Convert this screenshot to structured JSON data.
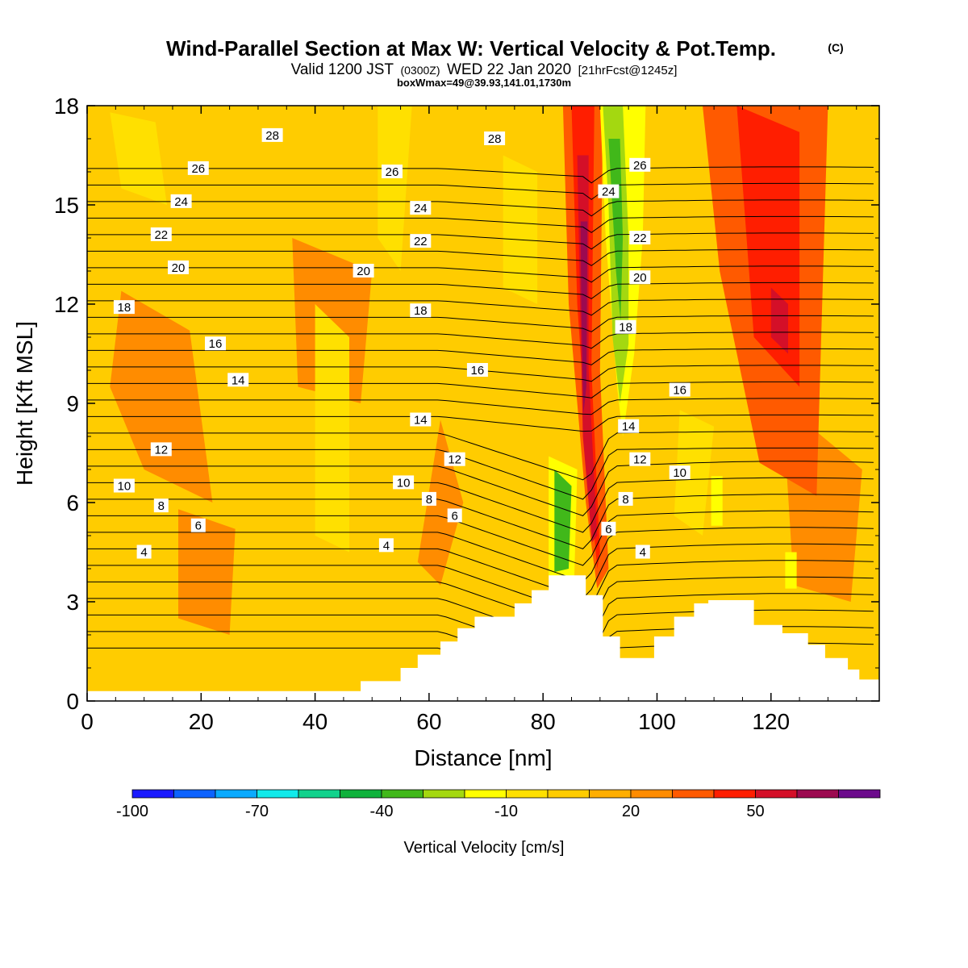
{
  "header": {
    "title": "Wind-Parallel Section at Max W: Vertical Velocity & Pot.Temp.",
    "title_mark": "(C)",
    "valid_prefix": "Valid 1200 JST",
    "valid_utc": "(0300Z)",
    "valid_date": "WED 22 Jan 2020",
    "forecast": "[21hrFcst@1245z]",
    "box_info": "boxWmax=49@39.93,141.01,1730m"
  },
  "chart_data": {
    "type": "heatmap",
    "xlabel": "Distance [nm]",
    "ylabel": "Height [Kft MSL]",
    "xlim": [
      0,
      139
    ],
    "ylim": [
      0,
      18
    ],
    "x_ticks": [
      0,
      20,
      40,
      60,
      80,
      100,
      120
    ],
    "y_ticks": [
      0,
      3,
      6,
      9,
      12,
      15,
      18
    ],
    "colorbar": {
      "label": "Vertical Velocity [cm/s]",
      "tick_labels": [
        "-100",
        "-70",
        "-40",
        "-10",
        "20",
        "50"
      ],
      "tick_values": [
        -100,
        -70,
        -40,
        -10,
        20,
        50
      ],
      "levels": [
        -100,
        -90,
        -80,
        -70,
        -60,
        -50,
        -40,
        -30,
        -20,
        -10,
        0,
        10,
        20,
        30,
        40,
        50,
        60,
        70
      ],
      "colors": [
        "#1a1aff",
        "#0d63ff",
        "#0aaaff",
        "#11eaea",
        "#11d28c",
        "#0fb23c",
        "#41b81a",
        "#a4d810",
        "#ffff00",
        "#ffe000",
        "#ffcc00",
        "#ffae00",
        "#ff8c00",
        "#ff5a00",
        "#ff1e00",
        "#d40f28",
        "#9c0a50",
        "#6c0b8c"
      ]
    },
    "background_level": "#ffcc00",
    "terrain": [
      [
        0,
        0.3
      ],
      [
        48,
        0.3
      ],
      [
        48,
        0.6
      ],
      [
        55,
        0.6
      ],
      [
        55,
        1.0
      ],
      [
        58,
        1.0
      ],
      [
        58,
        1.4
      ],
      [
        62,
        1.4
      ],
      [
        62,
        1.8
      ],
      [
        65,
        1.8
      ],
      [
        65,
        2.2
      ],
      [
        68,
        2.2
      ],
      [
        68,
        2.55
      ],
      [
        75,
        2.55
      ],
      [
        75,
        2.95
      ],
      [
        78,
        2.95
      ],
      [
        78,
        3.35
      ],
      [
        81,
        3.35
      ],
      [
        81,
        3.8
      ],
      [
        87.5,
        3.8
      ],
      [
        87.5,
        3.2
      ],
      [
        90.5,
        3.2
      ],
      [
        90.5,
        1.95
      ],
      [
        93.5,
        1.95
      ],
      [
        93.5,
        1.3
      ],
      [
        99.5,
        1.3
      ],
      [
        99.5,
        1.95
      ],
      [
        103,
        1.95
      ],
      [
        103,
        2.55
      ],
      [
        106.5,
        2.55
      ],
      [
        106.5,
        2.95
      ],
      [
        109,
        2.95
      ],
      [
        109,
        3.05
      ],
      [
        117,
        3.05
      ],
      [
        117,
        2.3
      ],
      [
        122,
        2.3
      ],
      [
        122,
        2.05
      ],
      [
        126.5,
        2.05
      ],
      [
        126.5,
        1.7
      ],
      [
        129.5,
        1.7
      ],
      [
        129.5,
        1.3
      ],
      [
        133.5,
        1.3
      ],
      [
        133.5,
        0.95
      ],
      [
        135.5,
        0.95
      ],
      [
        135.5,
        0.65
      ],
      [
        139,
        0.65
      ]
    ],
    "velocity_features": [
      {
        "level": 20,
        "points": [
          [
            6,
            12.4
          ],
          [
            18,
            11.2
          ],
          [
            22,
            6.0
          ],
          [
            10,
            7.0
          ],
          [
            4,
            9.5
          ]
        ]
      },
      {
        "level": 20,
        "points": [
          [
            36,
            14.0
          ],
          [
            50,
            13.0
          ],
          [
            48,
            9.0
          ],
          [
            37,
            9.5
          ]
        ]
      },
      {
        "level": 20,
        "points": [
          [
            62,
            8.5
          ],
          [
            66,
            6.0
          ],
          [
            62,
            3.5
          ],
          [
            58,
            4.2
          ]
        ]
      },
      {
        "level": 20,
        "points": [
          [
            16,
            5.8
          ],
          [
            26,
            5.2
          ],
          [
            25,
            2.0
          ],
          [
            16,
            2.5
          ]
        ]
      },
      {
        "level": 20,
        "points": [
          [
            122,
            9.0
          ],
          [
            136,
            7.0
          ],
          [
            134,
            3.0
          ],
          [
            124,
            3.5
          ]
        ]
      },
      {
        "level": -10,
        "points": [
          [
            4,
            17.8
          ],
          [
            12,
            17.5
          ],
          [
            14,
            15.0
          ],
          [
            6,
            15.5
          ]
        ]
      },
      {
        "level": -10,
        "points": [
          [
            40,
            12.0
          ],
          [
            46,
            11.0
          ],
          [
            46,
            4.5
          ],
          [
            40,
            5.0
          ]
        ]
      },
      {
        "level": -10,
        "points": [
          [
            51,
            18
          ],
          [
            57,
            18
          ],
          [
            55,
            13.0
          ],
          [
            51,
            14.0
          ]
        ]
      },
      {
        "level": -10,
        "points": [
          [
            73,
            16.5
          ],
          [
            79,
            16.0
          ],
          [
            79,
            12.0
          ],
          [
            73,
            12.5
          ]
        ]
      },
      {
        "level": -10,
        "points": [
          [
            104,
            8.8
          ],
          [
            110,
            8.3
          ],
          [
            108,
            5.0
          ],
          [
            103,
            5.6
          ]
        ]
      },
      {
        "level": 30,
        "points": [
          [
            108,
            18
          ],
          [
            130,
            18
          ],
          [
            128,
            6.2
          ],
          [
            118,
            7.2
          ],
          [
            111,
            13.0
          ]
        ]
      },
      {
        "level": 40,
        "points": [
          [
            114,
            18
          ],
          [
            125,
            17.2
          ],
          [
            125,
            9.5
          ],
          [
            117,
            11.0
          ]
        ]
      },
      {
        "level": 50,
        "points": [
          [
            120,
            12.5
          ],
          [
            123,
            12.0
          ],
          [
            123,
            10.5
          ],
          [
            120,
            11.0
          ]
        ]
      },
      {
        "level": 30,
        "points": [
          [
            83.5,
            18
          ],
          [
            90.5,
            18
          ],
          [
            90,
            10.0
          ],
          [
            91.5,
            4.0
          ],
          [
            89.5,
            3.4
          ],
          [
            87.5,
            6.0
          ],
          [
            84.5,
            12.0
          ]
        ]
      },
      {
        "level": 40,
        "points": [
          [
            85,
            18
          ],
          [
            89,
            18
          ],
          [
            88.5,
            10.0
          ],
          [
            90,
            4.5
          ],
          [
            89.5,
            4.0
          ],
          [
            88,
            7.0
          ],
          [
            86,
            12.0
          ]
        ]
      },
      {
        "level": 50,
        "points": [
          [
            86,
            16.5
          ],
          [
            88,
            16.5
          ],
          [
            88,
            10.0
          ],
          [
            89.5,
            5.0
          ],
          [
            88.6,
            4.8
          ],
          [
            87,
            8.0
          ],
          [
            86.5,
            12.0
          ]
        ]
      },
      {
        "level": 60,
        "points": [
          [
            86.6,
            14.5
          ],
          [
            87.8,
            14.5
          ],
          [
            87.6,
            9.5
          ],
          [
            87.1,
            8.7
          ],
          [
            86.7,
            12.0
          ]
        ]
      },
      {
        "level": -20,
        "points": [
          [
            90,
            18
          ],
          [
            98,
            18
          ],
          [
            97.5,
            14.0
          ],
          [
            96,
            10.5
          ],
          [
            94,
            8.0
          ],
          [
            93,
            9.5
          ],
          [
            91,
            14.0
          ]
        ]
      },
      {
        "level": -30,
        "points": [
          [
            90.5,
            18
          ],
          [
            94,
            18
          ],
          [
            95,
            14.0
          ],
          [
            95,
            10.8
          ],
          [
            93.5,
            9.0
          ],
          [
            92.2,
            11.0
          ],
          [
            91.5,
            15.0
          ]
        ]
      },
      {
        "level": -40,
        "points": [
          [
            91.5,
            17.0
          ],
          [
            93.5,
            17.0
          ],
          [
            94,
            14.0
          ],
          [
            93.6,
            11.5
          ],
          [
            92.8,
            13.0
          ]
        ]
      },
      {
        "level": -20,
        "points": [
          [
            81,
            7.4
          ],
          [
            86,
            7.0
          ],
          [
            85.5,
            3.8
          ],
          [
            81,
            3.6
          ]
        ]
      },
      {
        "level": -40,
        "points": [
          [
            82,
            7.0
          ],
          [
            85,
            6.5
          ],
          [
            84.5,
            4.0
          ],
          [
            82,
            3.9
          ]
        ]
      },
      {
        "level": -20,
        "points": [
          [
            109.5,
            6.8
          ],
          [
            111.5,
            6.8
          ],
          [
            111.5,
            5.3
          ],
          [
            109.5,
            5.3
          ]
        ]
      },
      {
        "level": -20,
        "points": [
          [
            122.5,
            4.5
          ],
          [
            124.5,
            4.5
          ],
          [
            124.5,
            3.4
          ],
          [
            122.5,
            3.4
          ]
        ]
      }
    ],
    "theta_contours": {
      "interval": 1,
      "start": 2,
      "end": 31,
      "label_interval": 2
    },
    "contour_labels": [
      {
        "text": "28",
        "x": 32.5,
        "y": 17.1
      },
      {
        "text": "26",
        "x": 19.5,
        "y": 16.1
      },
      {
        "text": "24",
        "x": 16.5,
        "y": 15.1
      },
      {
        "text": "22",
        "x": 13,
        "y": 14.1
      },
      {
        "text": "20",
        "x": 16,
        "y": 13.1
      },
      {
        "text": "18",
        "x": 6.5,
        "y": 11.9
      },
      {
        "text": "16",
        "x": 22.5,
        "y": 10.8
      },
      {
        "text": "14",
        "x": 26.5,
        "y": 9.7
      },
      {
        "text": "12",
        "x": 13,
        "y": 7.6
      },
      {
        "text": "10",
        "x": 6.5,
        "y": 6.5
      },
      {
        "text": "8",
        "x": 13,
        "y": 5.9
      },
      {
        "text": "6",
        "x": 19.5,
        "y": 5.3
      },
      {
        "text": "4",
        "x": 10,
        "y": 4.5
      },
      {
        "text": "20",
        "x": 48.5,
        "y": 13.0
      },
      {
        "text": "26",
        "x": 53.5,
        "y": 16.0
      },
      {
        "text": "24",
        "x": 58.5,
        "y": 14.9
      },
      {
        "text": "22",
        "x": 58.5,
        "y": 13.9
      },
      {
        "text": "18",
        "x": 58.5,
        "y": 11.8
      },
      {
        "text": "14",
        "x": 58.5,
        "y": 8.5
      },
      {
        "text": "12",
        "x": 64.5,
        "y": 7.3
      },
      {
        "text": "10",
        "x": 55.5,
        "y": 6.6
      },
      {
        "text": "8",
        "x": 60,
        "y": 6.1
      },
      {
        "text": "6",
        "x": 64.5,
        "y": 5.6
      },
      {
        "text": "4",
        "x": 52.5,
        "y": 4.7
      },
      {
        "text": "16",
        "x": 68.5,
        "y": 10.0
      },
      {
        "text": "28",
        "x": 71.5,
        "y": 17.0
      },
      {
        "text": "24",
        "x": 91.5,
        "y": 15.4
      },
      {
        "text": "26",
        "x": 97,
        "y": 16.2
      },
      {
        "text": "22",
        "x": 97,
        "y": 14.0
      },
      {
        "text": "20",
        "x": 97,
        "y": 12.8
      },
      {
        "text": "18",
        "x": 94.5,
        "y": 11.3
      },
      {
        "text": "16",
        "x": 104,
        "y": 9.4
      },
      {
        "text": "14",
        "x": 95,
        "y": 8.3
      },
      {
        "text": "12",
        "x": 97,
        "y": 7.3
      },
      {
        "text": "10",
        "x": 104,
        "y": 6.9
      },
      {
        "text": "8",
        "x": 94.5,
        "y": 6.1
      },
      {
        "text": "6",
        "x": 91.5,
        "y": 5.2
      },
      {
        "text": "4",
        "x": 97.5,
        "y": 4.5
      }
    ]
  }
}
